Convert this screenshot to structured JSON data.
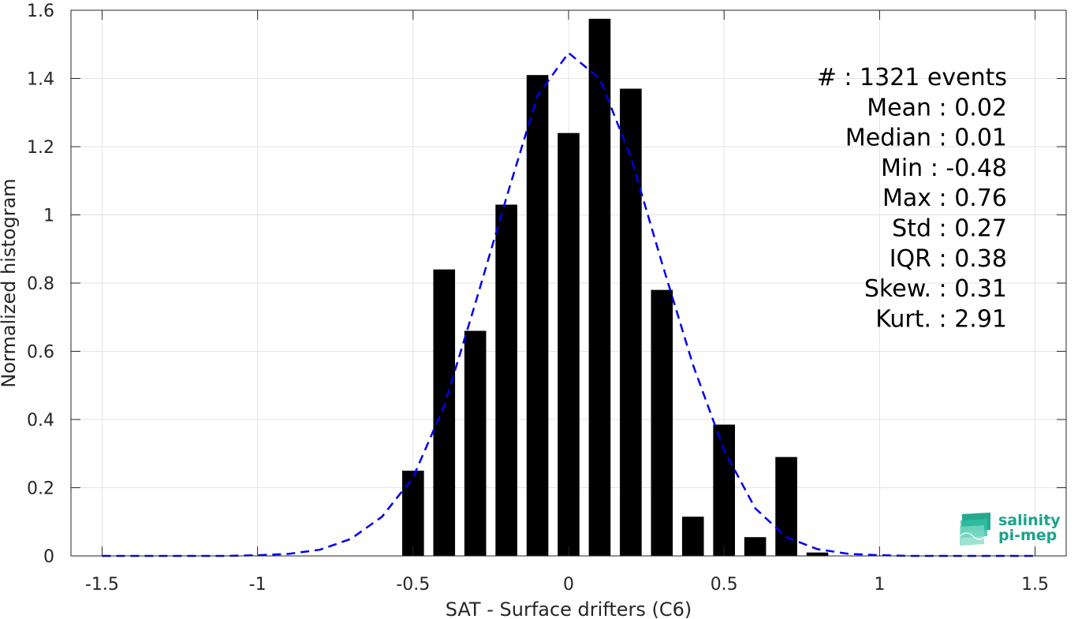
{
  "chart_data": {
    "type": "bar",
    "title": "",
    "xlabel": "SAT - Surface drifters (C6)",
    "ylabel": "Normalized histogram",
    "xlim": [
      -1.6,
      1.6
    ],
    "ylim": [
      0,
      1.6
    ],
    "xticks": [
      -1.5,
      -1,
      -0.5,
      0,
      0.5,
      1,
      1.5
    ],
    "xtick_labels": [
      "-1.5",
      "-1",
      "-0.5",
      "0",
      "0.5",
      "1",
      "1.5"
    ],
    "yticks": [
      0,
      0.2,
      0.4,
      0.6,
      0.8,
      1,
      1.2,
      1.4,
      1.6
    ],
    "ytick_labels": [
      "0",
      "0.2",
      "0.4",
      "0.6",
      "0.8",
      "1",
      "1.2",
      "1.4",
      "1.6"
    ],
    "grid": true,
    "bar_width": 0.07,
    "bar_color": "#000000",
    "bars": [
      {
        "x": -0.5,
        "value": 0.25
      },
      {
        "x": -0.4,
        "value": 0.84
      },
      {
        "x": -0.3,
        "value": 0.66
      },
      {
        "x": -0.2,
        "value": 1.03
      },
      {
        "x": -0.1,
        "value": 1.41
      },
      {
        "x": 0.0,
        "value": 1.24
      },
      {
        "x": 0.1,
        "value": 1.575
      },
      {
        "x": 0.2,
        "value": 1.37
      },
      {
        "x": 0.3,
        "value": 0.78
      },
      {
        "x": 0.4,
        "value": 0.115
      },
      {
        "x": 0.5,
        "value": 0.385
      },
      {
        "x": 0.6,
        "value": 0.055
      },
      {
        "x": 0.7,
        "value": 0.29
      },
      {
        "x": 0.8,
        "value": 0.01
      }
    ],
    "fit_curve": {
      "style": "dashed",
      "color": "#0000ee",
      "points": [
        [
          -1.5,
          0.0
        ],
        [
          -1.4,
          0.0
        ],
        [
          -1.3,
          0.0
        ],
        [
          -1.2,
          0.0
        ],
        [
          -1.1,
          0.0
        ],
        [
          -1.0,
          0.002
        ],
        [
          -0.9,
          0.006
        ],
        [
          -0.8,
          0.018
        ],
        [
          -0.7,
          0.05
        ],
        [
          -0.6,
          0.115
        ],
        [
          -0.5,
          0.23
        ],
        [
          -0.4,
          0.44
        ],
        [
          -0.3,
          0.74
        ],
        [
          -0.2,
          1.05
        ],
        [
          -0.1,
          1.35
        ],
        [
          0.0,
          1.475
        ],
        [
          0.1,
          1.4
        ],
        [
          0.2,
          1.17
        ],
        [
          0.3,
          0.86
        ],
        [
          0.4,
          0.56
        ],
        [
          0.5,
          0.31
        ],
        [
          0.6,
          0.14
        ],
        [
          0.7,
          0.055
        ],
        [
          0.8,
          0.02
        ],
        [
          0.9,
          0.006
        ],
        [
          1.0,
          0.002
        ],
        [
          1.1,
          0.0
        ],
        [
          1.2,
          0.0
        ],
        [
          1.3,
          0.0
        ],
        [
          1.4,
          0.0
        ],
        [
          1.5,
          0.0
        ]
      ]
    },
    "annotations": [
      "#  : 1321 events",
      "Mean : 0.02",
      "Median : 0.01",
      "Min : -0.48",
      "Max : 0.76",
      "Std : 0.27",
      "IQR : 0.38",
      "Skew. : 0.31",
      "Kurt. : 2.91"
    ]
  },
  "logo": {
    "line1": "salinity",
    "line2": "pi-mep",
    "color": "#1aa38a"
  }
}
